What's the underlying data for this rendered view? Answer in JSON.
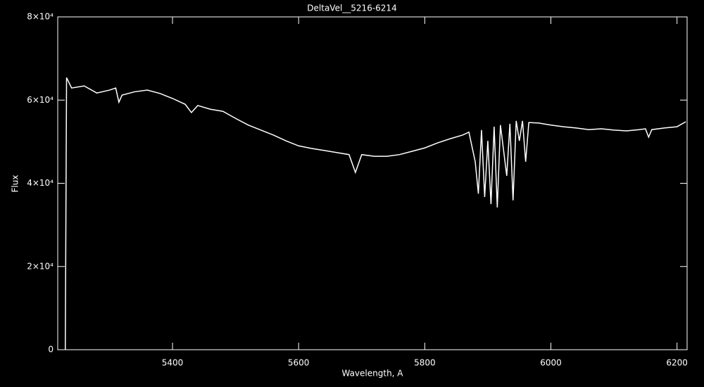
{
  "chart_data": {
    "type": "line",
    "title": "DeltaVel__5216-6214",
    "x_label": "Wavelength, A",
    "y_label": "Flux",
    "xlim": [
      5218,
      6216
    ],
    "ylim": [
      0,
      80000
    ],
    "xticks": [
      5400,
      5600,
      5800,
      6000,
      6200
    ],
    "yticks": [
      0,
      {
        "value": 20000,
        "label": "2×10⁴"
      },
      {
        "value": 40000,
        "label": "4×10⁴"
      },
      {
        "value": 60000,
        "label": "6×10⁴"
      },
      {
        "value": 80000,
        "label": "8×10⁴"
      }
    ],
    "series": [
      {
        "color": "#ffffff",
        "x": [
          5230,
          5232,
          5240,
          5260,
          5280,
          5300,
          5310,
          5315,
          5320,
          5340,
          5360,
          5380,
          5400,
          5420,
          5430,
          5440,
          5460,
          5480,
          5500,
          5520,
          5540,
          5560,
          5580,
          5600,
          5620,
          5640,
          5660,
          5680,
          5690,
          5700,
          5720,
          5740,
          5760,
          5780,
          5800,
          5820,
          5840,
          5860,
          5870,
          5880,
          5885,
          5890,
          5895,
          5900,
          5905,
          5910,
          5915,
          5920,
          5930,
          5935,
          5940,
          5945,
          5950,
          5955,
          5960,
          5965,
          5980,
          6000,
          6020,
          6040,
          6060,
          6080,
          6100,
          6120,
          6140,
          6150,
          6155,
          6160,
          6180,
          6200,
          6214
        ],
        "values": [
          0,
          65400,
          62900,
          63400,
          61700,
          62400,
          62900,
          59500,
          61200,
          62000,
          62400,
          61600,
          60400,
          59000,
          57000,
          58700,
          57800,
          57300,
          55600,
          54000,
          52800,
          51600,
          50200,
          49000,
          48400,
          47900,
          47400,
          46900,
          42600,
          46900,
          46500,
          46500,
          46900,
          47700,
          48500,
          49700,
          50700,
          51600,
          52300,
          45200,
          37500,
          52800,
          36700,
          50200,
          35000,
          53600,
          34200,
          54000,
          41800,
          54300,
          35900,
          55000,
          50200,
          55000,
          45200,
          54600,
          54500,
          54000,
          53600,
          53300,
          52900,
          53100,
          52800,
          52600,
          52900,
          53100,
          51100,
          52900,
          53300,
          53600,
          54800
        ]
      }
    ]
  }
}
